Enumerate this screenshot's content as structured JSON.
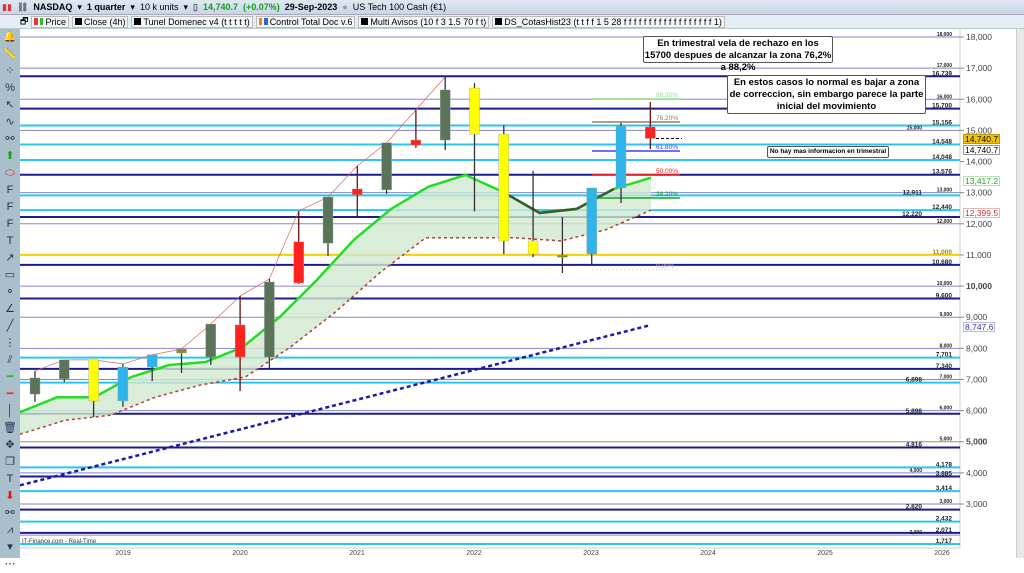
{
  "toolbar": {
    "symbol": "NASDAQ",
    "timeframe": "1 quarter",
    "units": "10 k units",
    "price": "14,740.7",
    "change": "(+0.07%)",
    "date": "29-Sep-2023",
    "instrument": "US Tech 100 Cash (€1)"
  },
  "indicators": [
    "Price",
    "Close (4h)",
    "Tunel Domenec v4 (t t t t t)",
    "Control Total Doc v.6",
    "Multi Avisos (10 f 3 1.5 70 f t)",
    "DS_CotasHist23 (t t f f 1 5 28 f f f f f f f f f f f f f f f f f f 1)"
  ],
  "left_tools": [
    "alert-bell",
    "ruler",
    "fibonacci-labels",
    "percent",
    "cursor",
    "elliott-wave",
    "chain",
    "arrow-up",
    "ellipse",
    "fibo-fan",
    "fibo-levels",
    "fibo-retrace",
    "text",
    "arrow",
    "rectangle",
    "segment",
    "angle",
    "trendline",
    "vertical-segment",
    "channel",
    "green-hline",
    "red-hline",
    "vertical-line",
    "trash",
    "move",
    "copy",
    "text-box",
    "arrow-down",
    "link",
    "indicator",
    "expand",
    "more"
  ],
  "annotations": {
    "box1": "En trimestral vela de rechazo en los 15700 despues de alcanzar la zona 76,2% a 88,2%",
    "box2": "En estos casos lo normal es bajar a zona de correccion, sin embargo parece la parte inicial del movimiento",
    "box3": "No hay mas informacion en trimestral"
  },
  "watermark": "IT-Finance.com - Real-Time",
  "price_tags": {
    "last": "14,740.7",
    "last2": "14,740.7",
    "green": "13,417.2",
    "red": "12,399.5",
    "blue": "8,747.6"
  },
  "colors": {
    "navy": "#1c1c8e",
    "cyan": "#29c6f4",
    "grid": "#8585d0",
    "yellow": "#f0d000",
    "up": "#5a7359",
    "down": "#ff2020",
    "yellow_candle": "#ffff00",
    "blue_candle": "#2fb4ec",
    "olive": "#8a8a30"
  },
  "chart_data": {
    "type": "candlestick",
    "ylim": [
      1500,
      18500
    ],
    "y_ticks": [
      18000,
      17000,
      16000,
      15000,
      14000,
      13000,
      12000,
      11000,
      10000,
      9000,
      8000,
      7000,
      6000,
      5000,
      4000,
      3000
    ],
    "x_ticks": [
      "2019",
      "2020",
      "2021",
      "2022",
      "2023",
      "2024",
      "2025",
      "2026"
    ],
    "candles": [
      {
        "o": 6530,
        "h": 7270,
        "l": 6280,
        "c": 7050,
        "color": "up"
      },
      {
        "o": 7020,
        "h": 7630,
        "l": 6920,
        "c": 7630,
        "color": "up"
      },
      {
        "o": 7630,
        "h": 7630,
        "l": 5790,
        "c": 6310,
        "color": "yellow_candle"
      },
      {
        "o": 6310,
        "h": 7500,
        "l": 6120,
        "c": 7400,
        "color": "blue_candle"
      },
      {
        "o": 7400,
        "h": 7790,
        "l": 6950,
        "c": 7790,
        "color": "blue_candle"
      },
      {
        "o": 7850,
        "h": 7980,
        "l": 7210,
        "c": 7980,
        "color": "olive"
      },
      {
        "o": 7720,
        "h": 8780,
        "l": 7470,
        "c": 8780,
        "color": "up"
      },
      {
        "o": 8750,
        "h": 9680,
        "l": 6630,
        "c": 7720,
        "color": "down"
      },
      {
        "o": 7720,
        "h": 10230,
        "l": 7370,
        "c": 10130,
        "color": "up"
      },
      {
        "o": 11420,
        "h": 12410,
        "l": 10070,
        "c": 10100,
        "color": "down"
      },
      {
        "o": 11380,
        "h": 12860,
        "l": 10970,
        "c": 12860,
        "color": "up"
      },
      {
        "o": 13120,
        "h": 13860,
        "l": 12190,
        "c": 12930,
        "color": "down"
      },
      {
        "o": 13090,
        "h": 14600,
        "l": 12960,
        "c": 14600,
        "color": "up"
      },
      {
        "o": 14690,
        "h": 15660,
        "l": 14440,
        "c": 14530,
        "color": "down"
      },
      {
        "o": 14690,
        "h": 16720,
        "l": 14370,
        "c": 16300,
        "color": "up"
      },
      {
        "o": 16360,
        "h": 16520,
        "l": 12400,
        "c": 14880,
        "color": "yellow_candle"
      },
      {
        "o": 14880,
        "h": 15170,
        "l": 11030,
        "c": 11450,
        "color": "yellow_candle"
      },
      {
        "o": 11450,
        "h": 13700,
        "l": 10930,
        "c": 11030,
        "color": "yellow_candle"
      },
      {
        "o": 10990,
        "h": 12220,
        "l": 10420,
        "c": 10930,
        "color": "olive"
      },
      {
        "o": 11030,
        "h": 13150,
        "l": 10650,
        "c": 13150,
        "color": "blue_candle"
      },
      {
        "o": 13150,
        "h": 15240,
        "l": 12670,
        "c": 15140,
        "color": "blue_candle"
      },
      {
        "o": 15110,
        "h": 15910,
        "l": 14400,
        "c": 14741,
        "color": "down"
      }
    ],
    "levels": [
      {
        "label": "18,000",
        "v": 18000,
        "style": "grid"
      },
      {
        "label": "17,000",
        "v": 17000,
        "style": "grid"
      },
      {
        "label": "16,739",
        "v": 16739,
        "style": "navy"
      },
      {
        "label": "16,000",
        "v": 16000,
        "style": "grid"
      },
      {
        "label": "15,700",
        "v": 15700,
        "style": "navy"
      },
      {
        "label": "15,156",
        "v": 15156,
        "style": "cyan"
      },
      {
        "label": "15,000",
        "v": 15000,
        "style": "grid"
      },
      {
        "label": "14,548",
        "v": 14548,
        "style": "cyan"
      },
      {
        "label": "14,048",
        "v": 14048,
        "style": "cyan"
      },
      {
        "label": "13,576",
        "v": 13576,
        "style": "navy"
      },
      {
        "label": "13,000",
        "v": 13000,
        "style": "grid"
      },
      {
        "label": "12,911",
        "v": 12911,
        "style": "cyan"
      },
      {
        "label": "12,440",
        "v": 12440,
        "style": "cyan"
      },
      {
        "label": "12,220",
        "v": 12220,
        "style": "navy"
      },
      {
        "label": "12,000",
        "v": 12000,
        "style": "grid"
      },
      {
        "label": "11,000",
        "v": 11000,
        "style": "yellow"
      },
      {
        "label": "10,680",
        "v": 10680,
        "style": "navy"
      },
      {
        "label": "10,000",
        "v": 10000,
        "style": "grid"
      },
      {
        "label": "9,600",
        "v": 9600,
        "style": "navy"
      },
      {
        "label": "9,000",
        "v": 9000,
        "style": "grid"
      },
      {
        "label": "8,000",
        "v": 8000,
        "style": "grid"
      },
      {
        "label": "7,701",
        "v": 7701,
        "style": "cyan"
      },
      {
        "label": "7,340",
        "v": 7340,
        "style": "navy"
      },
      {
        "label": "7,000",
        "v": 7000,
        "style": "grid"
      },
      {
        "label": "6,898",
        "v": 6898,
        "style": "cyan"
      },
      {
        "label": "6,000",
        "v": 6000,
        "style": "grid"
      },
      {
        "label": "5,898",
        "v": 5898,
        "style": "navy"
      },
      {
        "label": "5,000",
        "v": 5000,
        "style": "grid"
      },
      {
        "label": "4,816",
        "v": 4816,
        "style": "navy"
      },
      {
        "label": "4,178",
        "v": 4178,
        "style": "cyan"
      },
      {
        "label": "4,000",
        "v": 4000,
        "style": "grid"
      },
      {
        "label": "3,885",
        "v": 3885,
        "style": "navy"
      },
      {
        "label": "3,414",
        "v": 3414,
        "style": "cyan"
      },
      {
        "label": "3,000",
        "v": 3000,
        "style": "grid"
      },
      {
        "label": "2,820",
        "v": 2820,
        "style": "navy"
      },
      {
        "label": "2,432",
        "v": 2432,
        "style": "cyan"
      },
      {
        "label": "2,071",
        "v": 2071,
        "style": "navy"
      },
      {
        "label": "2,000",
        "v": 2000,
        "style": "grid"
      },
      {
        "label": "1,717",
        "v": 1717,
        "style": "cyan"
      }
    ],
    "fibonacci": [
      {
        "label": "88.20%",
        "v": 16010,
        "color": "#90e090"
      },
      {
        "label": "76.20%",
        "v": 15270,
        "color": "#a07850"
      },
      {
        "label": "61.80%",
        "v": 14340,
        "color": "#4040ff"
      },
      {
        "label": "50.00%",
        "v": 13570,
        "color": "#ff2020"
      },
      {
        "label": "38.20%",
        "v": 12830,
        "color": "#20a020"
      },
      {
        "label": "0.00%",
        "v": 10520,
        "color": "#bbbbbb"
      }
    ],
    "ma_upper": [
      5950,
      6430,
      6430,
      7080,
      7460,
      7560,
      8040,
      9010,
      10200,
      11490,
      12480,
      13190,
      13570,
      13030,
      12350,
      12480,
      13120,
      13480
    ],
    "ma_lower": [
      5240,
      5690,
      5850,
      6430,
      6820,
      7080,
      8040,
      9170,
      10450,
      11550,
      11550,
      11550,
      11450,
      11810,
      12440
    ],
    "trend_dotted": [
      {
        "x": 0,
        "v": 3600
      },
      {
        "x": 1,
        "v": 8750
      }
    ]
  }
}
